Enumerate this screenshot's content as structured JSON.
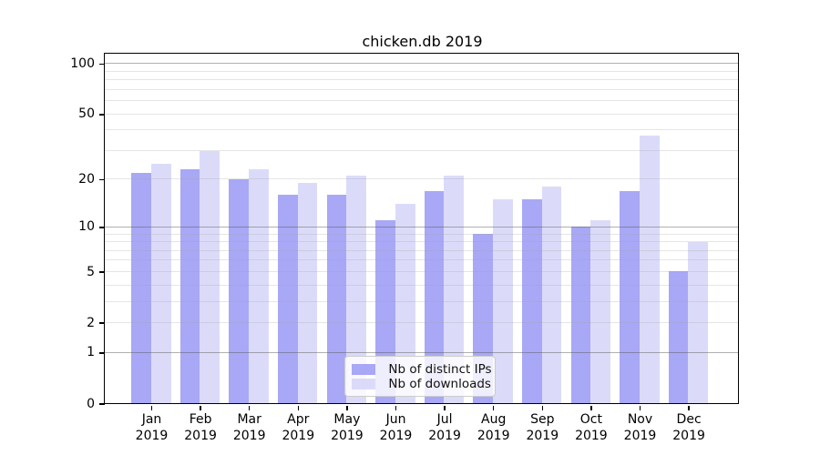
{
  "chart_data": {
    "type": "bar",
    "title": "chicken.db 2019",
    "xlabel": "",
    "ylabel": "",
    "yscale": "log1p",
    "ylim": [
      0,
      114
    ],
    "grid": "on",
    "legend_position": "lower center",
    "categories": [
      "Jan 2019",
      "Feb 2019",
      "Mar 2019",
      "Apr 2019",
      "May 2019",
      "Jun 2019",
      "Jul 2019",
      "Aug 2019",
      "Sep 2019",
      "Oct 2019",
      "Nov 2019",
      "Dec 2019"
    ],
    "series": [
      {
        "name": "Nb of distinct IPs",
        "color": "#a8a8f6",
        "values": [
          22,
          23,
          20,
          16,
          16,
          11,
          17,
          9,
          15,
          10,
          17,
          5
        ]
      },
      {
        "name": "Nb of downloads",
        "color": "#dbdbf9",
        "values": [
          25,
          30,
          23,
          19,
          21,
          14,
          21,
          15,
          18,
          11,
          37,
          8
        ]
      }
    ],
    "y_tick_values": [
      0,
      1,
      2,
      5,
      10,
      20,
      50,
      100
    ],
    "y_tick_labels": [
      "0",
      "1",
      "2",
      "5",
      "10",
      "20",
      "50",
      "100"
    ],
    "major_gridline_values": [
      1,
      10,
      100
    ],
    "minor_gridline_values": [
      2,
      3,
      4,
      5,
      6,
      7,
      8,
      9,
      20,
      30,
      40,
      50,
      60,
      70,
      80,
      90
    ]
  }
}
